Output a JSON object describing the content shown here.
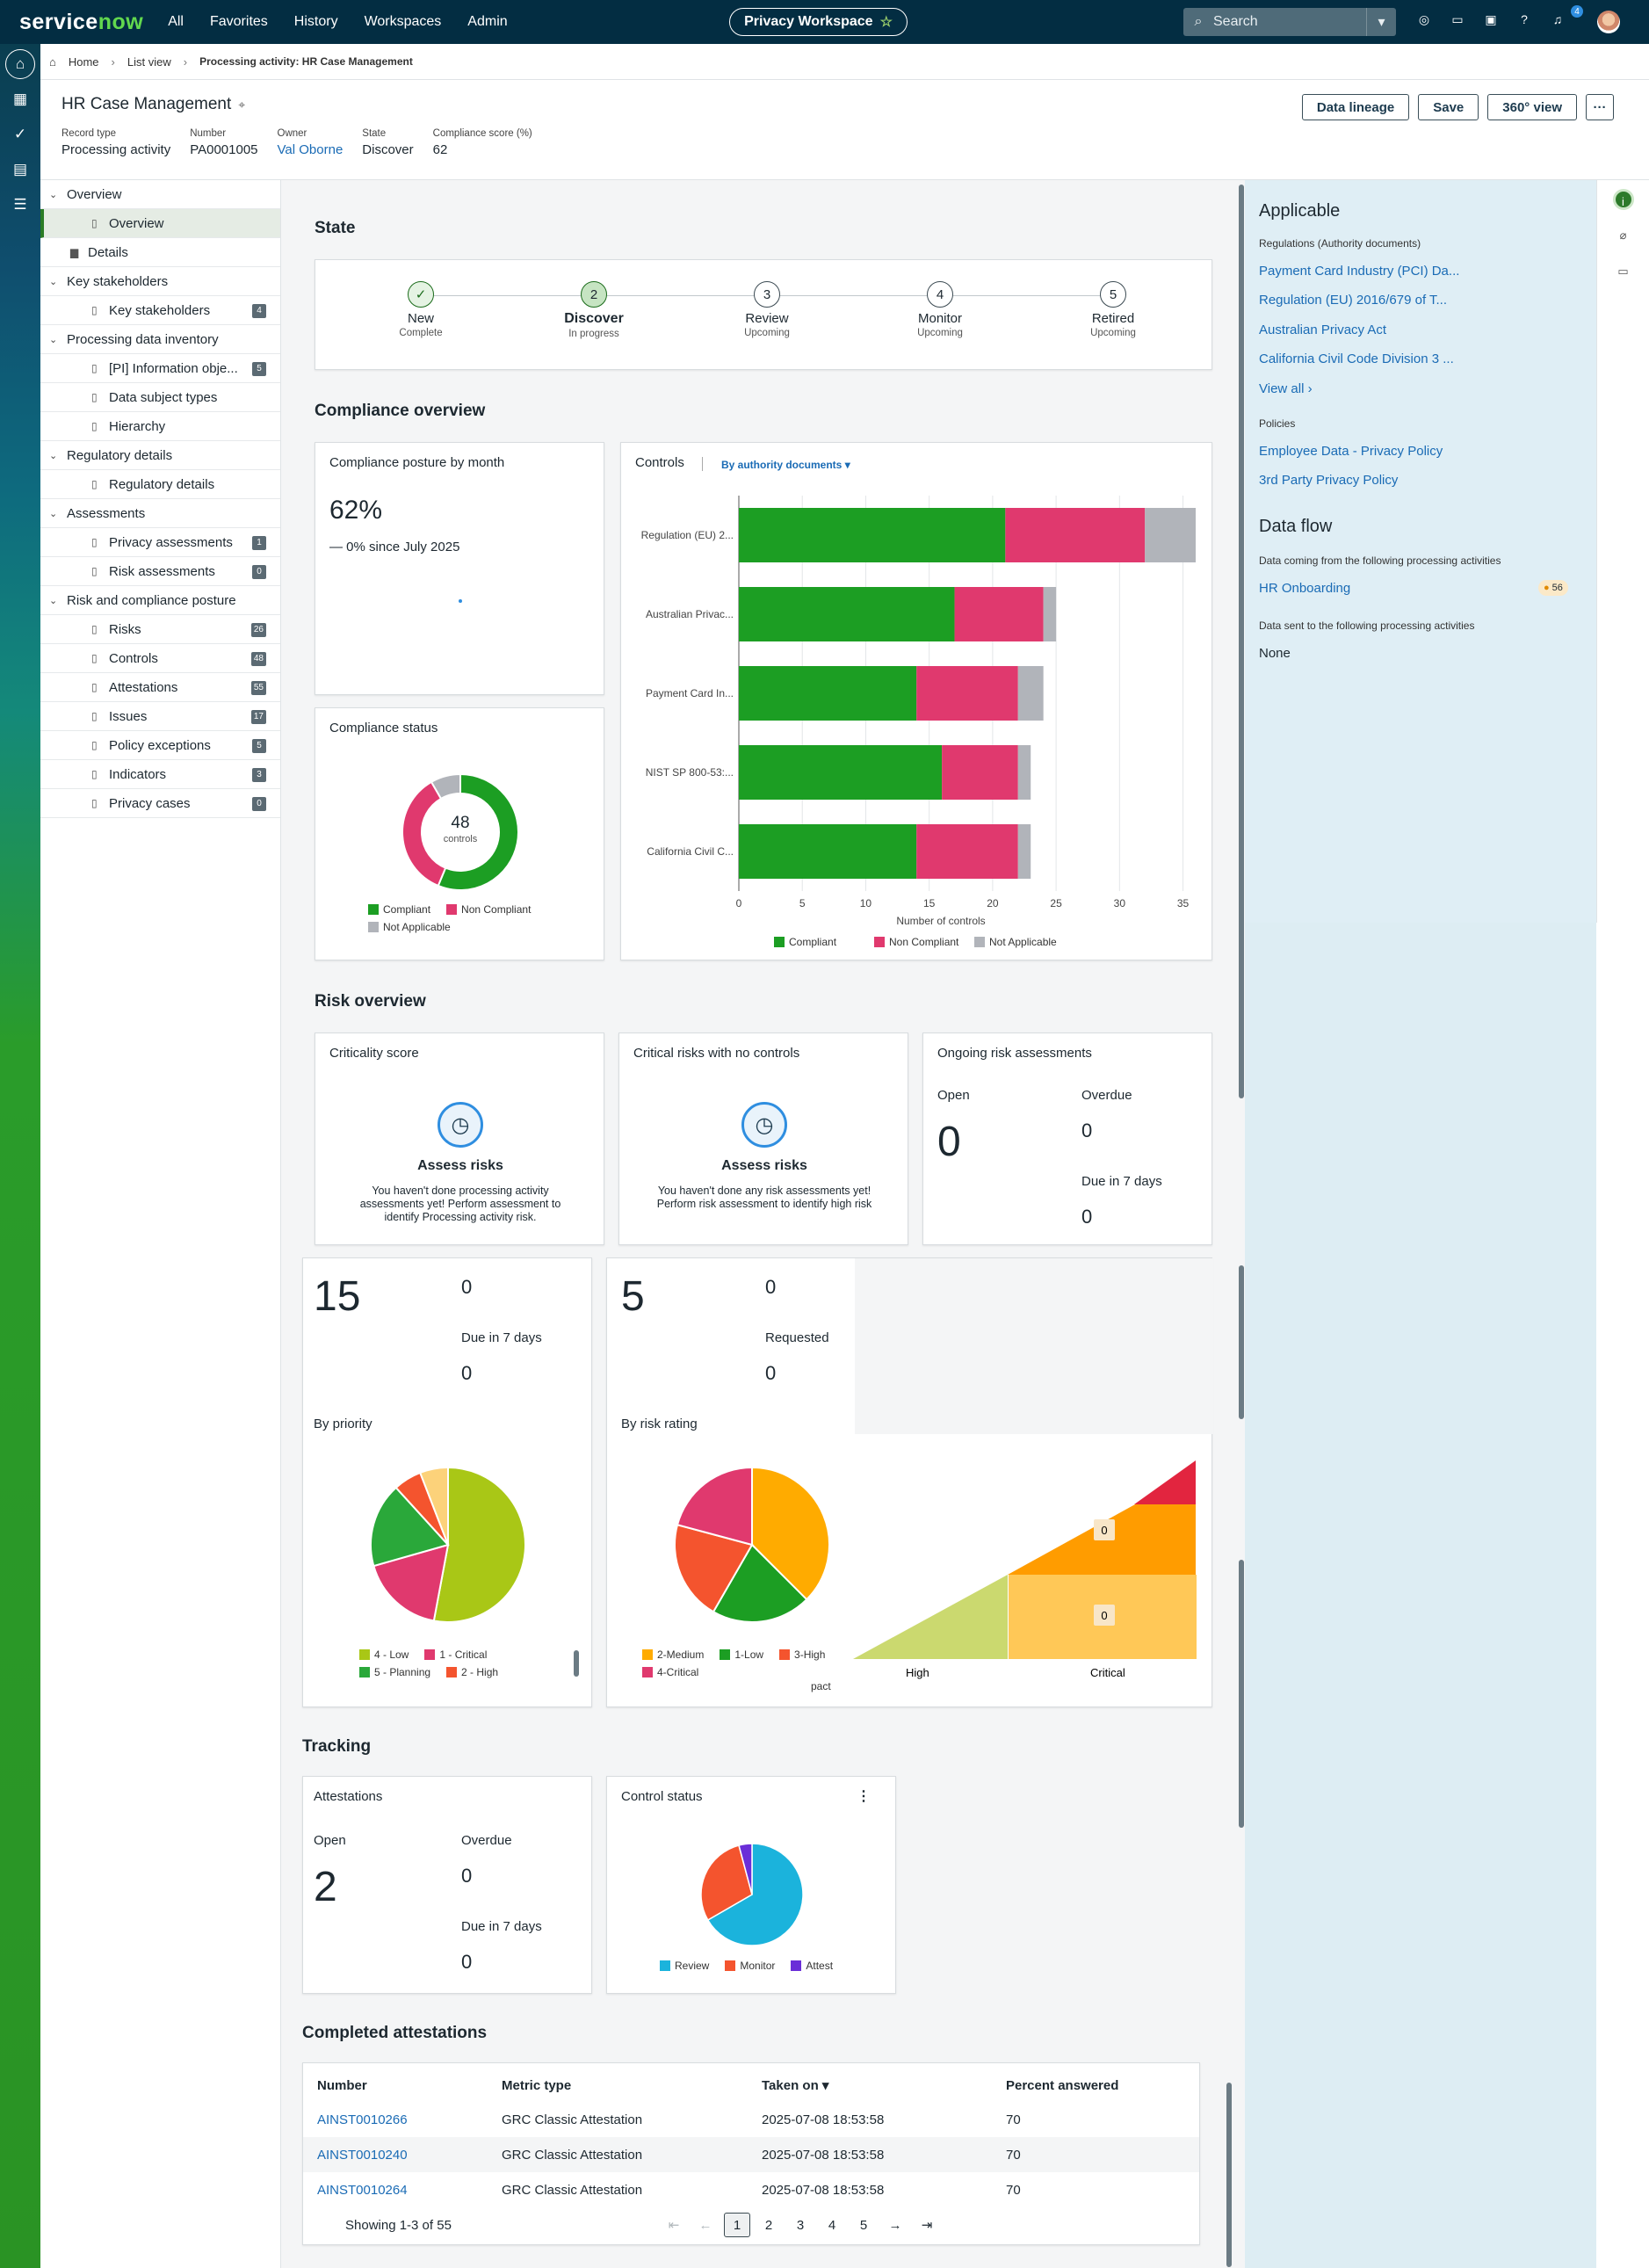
{
  "topnav": {
    "logo": "servicenow",
    "items": [
      "All",
      "Favorites",
      "History",
      "Workspaces",
      "Admin"
    ],
    "workspace": "Privacy Workspace",
    "search_placeholder": "Search",
    "notification_count": "4"
  },
  "breadcrumb": [
    "Home",
    "List view",
    "Processing activity: HR Case Management"
  ],
  "header": {
    "title": "HR Case Management",
    "meta": [
      {
        "label": "Record type",
        "value": "Processing activity"
      },
      {
        "label": "Number",
        "value": "PA0001005"
      },
      {
        "label": "Owner",
        "value": "Val Oborne"
      },
      {
        "label": "State",
        "value": "Discover"
      },
      {
        "label": "Compliance score (%)",
        "value": "62"
      }
    ],
    "buttons": [
      "Data lineage",
      "Save",
      "360° view",
      "···"
    ]
  },
  "tree": [
    {
      "type": "group",
      "label": "Overview"
    },
    {
      "type": "child",
      "label": "Overview",
      "active": true,
      "count": ""
    },
    {
      "type": "doc",
      "label": "Details",
      "count": ""
    },
    {
      "type": "group",
      "label": "Key stakeholders"
    },
    {
      "type": "child",
      "label": "Key stakeholders",
      "count": "4"
    },
    {
      "type": "group",
      "label": "Processing data inventory"
    },
    {
      "type": "child",
      "label": "[PI] Information obje...",
      "count": "5"
    },
    {
      "type": "child",
      "label": "Data subject types",
      "count": ""
    },
    {
      "type": "child",
      "label": "Hierarchy",
      "count": ""
    },
    {
      "type": "group",
      "label": "Regulatory details"
    },
    {
      "type": "child",
      "label": "Regulatory details",
      "count": ""
    },
    {
      "type": "group",
      "label": "Assessments"
    },
    {
      "type": "child",
      "label": "Privacy assessments",
      "count": "1"
    },
    {
      "type": "child",
      "label": "Risk assessments",
      "count": "0"
    },
    {
      "type": "group",
      "label": "Risk and compliance posture"
    },
    {
      "type": "child",
      "label": "Risks",
      "count": "26"
    },
    {
      "type": "child",
      "label": "Controls",
      "count": "48"
    },
    {
      "type": "child",
      "label": "Attestations",
      "count": "55"
    },
    {
      "type": "child",
      "label": "Issues",
      "count": "17"
    },
    {
      "type": "child",
      "label": "Policy exceptions",
      "count": "5"
    },
    {
      "type": "child",
      "label": "Indicators",
      "count": "3"
    },
    {
      "type": "child",
      "label": "Privacy cases",
      "count": "0"
    }
  ],
  "state": {
    "title": "State",
    "steps": [
      {
        "n": "✓",
        "name": "New",
        "status": "Complete",
        "kind": "done"
      },
      {
        "n": "2",
        "name": "Discover",
        "status": "In progress",
        "kind": "cur"
      },
      {
        "n": "3",
        "name": "Review",
        "status": "Upcoming",
        "kind": ""
      },
      {
        "n": "4",
        "name": "Monitor",
        "status": "Upcoming",
        "kind": ""
      },
      {
        "n": "5",
        "name": "Retired",
        "status": "Upcoming",
        "kind": ""
      }
    ]
  },
  "compliance": {
    "title": "Compliance overview",
    "posture_title": "Compliance posture by month",
    "posture_value": "62%",
    "posture_change": "— 0%  since July 2025",
    "status_title": "Compliance status",
    "donut_value": "48",
    "donut_unit": "controls",
    "controls_title": "Controls",
    "controls_filter": "By authority documents",
    "colors": {
      "compliant": "#1c9e23",
      "noncompliant": "#e0396e",
      "na": "#b1b4ba"
    }
  },
  "chart_data": [
    {
      "type": "pie",
      "title": "Compliance status",
      "categories": [
        "Compliant",
        "Non Compliant",
        "Not Applicable"
      ],
      "values": [
        27,
        17,
        4
      ]
    },
    {
      "type": "bar",
      "orientation": "horizontal",
      "stacked": true,
      "title": "Controls",
      "categories": [
        "Regulation (EU) 2...",
        "Australian Privac...",
        "Payment Card In...",
        "NIST SP 800-53:...",
        "California Civil C..."
      ],
      "series": [
        {
          "name": "Compliant",
          "values": [
            21,
            17,
            14,
            16,
            14
          ]
        },
        {
          "name": "Non Compliant",
          "values": [
            11,
            7,
            8,
            6,
            8
          ]
        },
        {
          "name": "Not Applicable",
          "values": [
            4,
            1,
            2,
            1,
            1
          ]
        }
      ],
      "xlabel": "Number of controls",
      "xlim": [
        0,
        35
      ],
      "xticks": [
        0,
        5,
        10,
        15,
        20,
        25,
        30,
        35
      ],
      "legend": "bottom"
    },
    {
      "type": "pie",
      "title": "By priority",
      "categories": [
        "4 - Low",
        "1 - Critical",
        "5 - Planning",
        "2 - High",
        "3 - Moderate"
      ],
      "values": [
        9,
        3,
        3,
        1,
        1
      ],
      "colors": [
        "#a9c716",
        "#e0396e",
        "#2aa83a",
        "#f4542e",
        "#fcd27a"
      ]
    },
    {
      "type": "pie",
      "title": "By risk rating",
      "categories": [
        "2-Medium",
        "1-Low",
        "3-High",
        "4-Critical"
      ],
      "values": [
        9,
        5,
        5,
        5
      ],
      "colors": [
        "#ffab00",
        "#1c9e23",
        "#f4542e",
        "#e0396e"
      ]
    },
    {
      "type": "pie",
      "title": "Control status",
      "categories": [
        "Review",
        "Monitor",
        "Attest"
      ],
      "values": [
        32,
        14,
        2
      ],
      "colors": [
        "#1bb3dc",
        "#f4542e",
        "#6a2ed8"
      ]
    }
  ],
  "risk": {
    "title": "Risk overview",
    "criticality_title": "Criticality score",
    "criticality_head": "Assess risks",
    "criticality_text": "You haven't done processing activity assessments yet! Perform assessment to identify Processing activity risk.",
    "crit_no_ctrl_title": "Critical risks with no controls",
    "crit_no_ctrl_head": "Assess risks",
    "crit_no_ctrl_text": "You haven't done any risk assessments yet! Perform risk assessment to identify high risk",
    "ongoing_title": "Ongoing risk assessments",
    "ongoing_open_label": "Open",
    "ongoing_open": "0",
    "ongoing_overdue_label": "Overdue",
    "ongoing_overdue": "0",
    "ongoing_due_label": "Due in 7 days",
    "ongoing_due": "0",
    "card1_big": "15",
    "card1_top": "0",
    "card1_due_label": "Due in 7 days",
    "card1_due": "0",
    "priority_title": "By priority",
    "card2_big": "5",
    "card2_top": "0",
    "card2_req_label": "Requested",
    "card2_req": "0",
    "rating_title": "By risk rating",
    "rating_footer": "pact",
    "heat_cells": [
      "0",
      "0"
    ],
    "heat_cols": [
      "High",
      "Critical"
    ]
  },
  "tracking": {
    "title": "Tracking",
    "att_title": "Attestations",
    "open_label": "Open",
    "open": "2",
    "overdue_label": "Overdue",
    "overdue": "0",
    "due_label": "Due in 7 days",
    "due": "0",
    "control_status_title": "Control status"
  },
  "completed": {
    "title": "Completed attestations",
    "columns": [
      "Number",
      "Metric type",
      "Taken on ▾",
      "Percent answered"
    ],
    "rows": [
      [
        "AINST0010266",
        "GRC Classic Attestation",
        "2025-07-08 18:53:58",
        "70"
      ],
      [
        "AINST0010240",
        "GRC Classic Attestation",
        "2025-07-08 18:53:58",
        "70"
      ],
      [
        "AINST0010264",
        "GRC Classic Attestation",
        "2025-07-08 18:53:58",
        "70"
      ]
    ],
    "showing": "Showing 1-3 of 55",
    "pages": [
      "1",
      "2",
      "3",
      "4",
      "5"
    ]
  },
  "right": {
    "applicable": "Applicable",
    "reg_label": "Regulations (Authority documents)",
    "regs": [
      "Payment Card Industry (PCI) Da...",
      "Regulation (EU) 2016/679 of T...",
      "Australian Privacy Act",
      "California Civil Code Division 3 ..."
    ],
    "view_all": "View all",
    "policies_label": "Policies",
    "policies": [
      "Employee Data - Privacy Policy",
      "3rd Party Privacy Policy"
    ],
    "dataflow": "Data flow",
    "from_label": "Data coming from the following processing activities",
    "from_item": "HR Onboarding",
    "from_badge": "56",
    "to_label": "Data sent to the following processing activities",
    "to_item": "None"
  }
}
